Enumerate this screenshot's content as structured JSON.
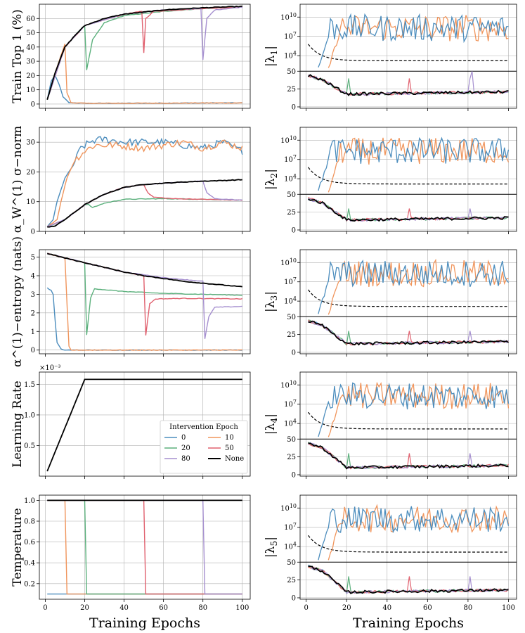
{
  "chart_data": {
    "type": "line",
    "xlabel": "Training Epochs",
    "x_ticks": [
      0,
      20,
      40,
      60,
      80,
      100
    ],
    "colors": {
      "0": "#4c8dbd",
      "10": "#f0955c",
      "20": "#5bb07c",
      "50": "#e0606e",
      "80": "#a58fcf",
      "None": "#000000"
    },
    "legend": {
      "title": "Intervention Epoch",
      "entries": [
        "0",
        "10",
        "20",
        "50",
        "80",
        "None"
      ]
    },
    "left_panels": [
      {
        "id": "train",
        "ylabel": "Train Top 1 (%)",
        "ylim": [
          -3,
          70
        ],
        "yticks": [
          "0",
          "10",
          "20",
          "30",
          "40",
          "50",
          "60"
        ],
        "ytick_values": [
          0,
          10,
          20,
          30,
          40,
          50,
          60
        ],
        "series_knots": {
          "None": [
            [
              1,
              3
            ],
            [
              5,
              22
            ],
            [
              10,
              40
            ],
            [
              15,
              48
            ],
            [
              20,
              55
            ],
            [
              30,
              60
            ],
            [
              40,
              63
            ],
            [
              60,
              66
            ],
            [
              80,
              67.5
            ],
            [
              100,
              68.5
            ]
          ],
          "10": [
            [
              1,
              3
            ],
            [
              5,
              22
            ],
            [
              10,
              42
            ],
            [
              11,
              8
            ],
            [
              13,
              1
            ],
            [
              20,
              0.5
            ],
            [
              100,
              0.8
            ]
          ],
          "20": [
            [
              1,
              3
            ],
            [
              5,
              22
            ],
            [
              10,
              40
            ],
            [
              19,
              54
            ],
            [
              20,
              55
            ],
            [
              21,
              24
            ],
            [
              24,
              45
            ],
            [
              30,
              57
            ],
            [
              40,
              62
            ],
            [
              60,
              65
            ],
            [
              80,
              67
            ],
            [
              100,
              68
            ]
          ],
          "50": [
            [
              1,
              3
            ],
            [
              10,
              40
            ],
            [
              20,
              55
            ],
            [
              40,
              63
            ],
            [
              49,
              65
            ],
            [
              50,
              36
            ],
            [
              51,
              60
            ],
            [
              55,
              65
            ],
            [
              80,
              67
            ],
            [
              100,
              68
            ]
          ],
          "80": [
            [
              1,
              3
            ],
            [
              10,
              40
            ],
            [
              20,
              55
            ],
            [
              40,
              63
            ],
            [
              60,
              66
            ],
            [
              79,
              67
            ],
            [
              80,
              31
            ],
            [
              82,
              60
            ],
            [
              86,
              66
            ],
            [
              100,
              68
            ]
          ],
          "0": [
            [
              1,
              3
            ],
            [
              3,
              16
            ],
            [
              5,
              20
            ],
            [
              7,
              14
            ],
            [
              9,
              5
            ],
            [
              12,
              1
            ],
            [
              20,
              0.5
            ],
            [
              100,
              0.8
            ]
          ]
        }
      },
      {
        "id": "sigma",
        "ylabel": "α_W^(1) σ−norm",
        "ylim": [
          0,
          35
        ],
        "yticks": [
          "0",
          "10",
          "20",
          "30"
        ],
        "ytick_values": [
          0,
          10,
          20,
          30
        ],
        "series_knots": {
          "None": [
            [
              1,
              1.5
            ],
            [
              5,
              1.8
            ],
            [
              10,
              4
            ],
            [
              20,
              9
            ],
            [
              30,
              12.5
            ],
            [
              40,
              14.8
            ],
            [
              50,
              15.8
            ],
            [
              60,
              16.2
            ],
            [
              70,
              16.6
            ],
            [
              80,
              16.9
            ],
            [
              90,
              17.1
            ],
            [
              100,
              17.4
            ]
          ],
          "0": [
            [
              1,
              1.5
            ],
            [
              4,
              4
            ],
            [
              6,
              10
            ],
            [
              8,
              14
            ],
            [
              10,
              18
            ],
            [
              14,
              22
            ],
            [
              18,
              28
            ],
            [
              24,
              30.5
            ],
            [
              30,
              31
            ],
            [
              40,
              30
            ],
            [
              60,
              30
            ],
            [
              80,
              28
            ],
            [
              90,
              30
            ],
            [
              100,
              27
            ]
          ],
          "10": [
            [
              1,
              1.5
            ],
            [
              6,
              4
            ],
            [
              8,
              10
            ],
            [
              11,
              18
            ],
            [
              15,
              24
            ],
            [
              20,
              27
            ],
            [
              25,
              29
            ],
            [
              35,
              29
            ],
            [
              50,
              28
            ],
            [
              60,
              29
            ],
            [
              70,
              30
            ],
            [
              80,
              28
            ],
            [
              90,
              30
            ],
            [
              100,
              28
            ]
          ],
          "20": [
            [
              1,
              1.5
            ],
            [
              10,
              4
            ],
            [
              20,
              9
            ],
            [
              22,
              9
            ],
            [
              24,
              8
            ],
            [
              30,
              9.5
            ],
            [
              40,
              10.8
            ],
            [
              60,
              11
            ],
            [
              80,
              10.8
            ],
            [
              100,
              10.5
            ]
          ],
          "50": [
            [
              1,
              1.5
            ],
            [
              10,
              4
            ],
            [
              20,
              9
            ],
            [
              30,
              12.5
            ],
            [
              40,
              14.8
            ],
            [
              50,
              15.8
            ],
            [
              52,
              13
            ],
            [
              55,
              11.5
            ],
            [
              65,
              11
            ],
            [
              80,
              10.8
            ],
            [
              100,
              10.5
            ]
          ],
          "80": [
            [
              1,
              1.5
            ],
            [
              10,
              4
            ],
            [
              20,
              9
            ],
            [
              30,
              12.5
            ],
            [
              40,
              14.8
            ],
            [
              50,
              15.8
            ],
            [
              60,
              16.2
            ],
            [
              70,
              16.6
            ],
            [
              80,
              16.9
            ],
            [
              82,
              13
            ],
            [
              86,
              11
            ],
            [
              100,
              10.5
            ]
          ]
        }
      },
      {
        "id": "entropy",
        "ylabel": "α^(1)−entropy (nats)",
        "ylim": [
          -0.2,
          5.4
        ],
        "yticks": [
          "0",
          "1",
          "2",
          "3",
          "4",
          "5"
        ],
        "ytick_values": [
          0,
          1,
          2,
          3,
          4,
          5
        ],
        "series_knots": {
          "None": [
            [
              1,
              5.2
            ],
            [
              10,
              4.95
            ],
            [
              20,
              4.7
            ],
            [
              30,
              4.45
            ],
            [
              40,
              4.2
            ],
            [
              50,
              4.0
            ],
            [
              60,
              3.85
            ],
            [
              70,
              3.7
            ],
            [
              80,
              3.6
            ],
            [
              90,
              3.5
            ],
            [
              100,
              3.4
            ]
          ],
          "0": [
            [
              1,
              3.35
            ],
            [
              3,
              3.2
            ],
            [
              4,
              3.0
            ],
            [
              5,
              1.6
            ],
            [
              6,
              0.4
            ],
            [
              8,
              0.05
            ],
            [
              10,
              0
            ],
            [
              100,
              0
            ]
          ],
          "10": [
            [
              1,
              5.2
            ],
            [
              9,
              4.96
            ],
            [
              10,
              4.95
            ],
            [
              11,
              2.5
            ],
            [
              12,
              0.2
            ],
            [
              13,
              0
            ],
            [
              100,
              0
            ]
          ],
          "20": [
            [
              1,
              5.2
            ],
            [
              20,
              4.7
            ],
            [
              21,
              0.8
            ],
            [
              23,
              2.8
            ],
            [
              25,
              3.3
            ],
            [
              40,
              3.15
            ],
            [
              60,
              3.05
            ],
            [
              80,
              3.0
            ],
            [
              100,
              2.95
            ]
          ],
          "50": [
            [
              1,
              5.2
            ],
            [
              20,
              4.7
            ],
            [
              40,
              4.2
            ],
            [
              50,
              4.0
            ],
            [
              51,
              0.8
            ],
            [
              53,
              2.5
            ],
            [
              56,
              2.75
            ],
            [
              70,
              2.78
            ],
            [
              100,
              2.75
            ]
          ],
          "80": [
            [
              1,
              5.2
            ],
            [
              20,
              4.7
            ],
            [
              40,
              4.2
            ],
            [
              60,
              3.9
            ],
            [
              70,
              3.8
            ],
            [
              80,
              3.7
            ],
            [
              81,
              0.6
            ],
            [
              83,
              1.8
            ],
            [
              86,
              2.3
            ],
            [
              100,
              2.35
            ]
          ]
        }
      },
      {
        "id": "lr",
        "ylabel": "Learning Rate",
        "ylim": [
          0.0,
          1.7
        ],
        "yticks": [
          "0.5",
          "1.0",
          "1.5"
        ],
        "ytick_values": [
          0.5,
          1.0,
          1.5
        ],
        "yoffset_label": "×10⁻³",
        "series_knots": {
          "None": [
            [
              1,
              0.08
            ],
            [
              20,
              1.58
            ],
            [
              100,
              1.58
            ]
          ]
        }
      },
      {
        "id": "temp",
        "ylabel": "Temperature",
        "ylim": [
          0.05,
          1.05
        ],
        "yticks": [
          "0.2",
          "0.4",
          "0.6",
          "0.8",
          "1.0"
        ],
        "ytick_values": [
          0.2,
          0.4,
          0.6,
          0.8,
          1.0
        ],
        "series_knots": {
          "0": [
            [
              1,
              0.1
            ],
            [
              100,
              0.1
            ]
          ],
          "10": [
            [
              1,
              1.0
            ],
            [
              10,
              1.0
            ],
            [
              11,
              0.1
            ],
            [
              100,
              0.1
            ]
          ],
          "20": [
            [
              1,
              1.0
            ],
            [
              20,
              1.0
            ],
            [
              21,
              0.1
            ],
            [
              100,
              0.1
            ]
          ],
          "50": [
            [
              1,
              1.0
            ],
            [
              50,
              1.0
            ],
            [
              51,
              0.1
            ],
            [
              100,
              0.1
            ]
          ],
          "80": [
            [
              1,
              1.0
            ],
            [
              80,
              1.0
            ],
            [
              81,
              0.1
            ],
            [
              100,
              0.1
            ]
          ],
          "None": [
            [
              1,
              1.0
            ],
            [
              100,
              1.0
            ]
          ]
        }
      }
    ],
    "right_panels": [
      {
        "id": "lambda1",
        "ylabel": "|λ1|",
        "symbol": "λ",
        "subscript": "1",
        "upper_ticks": [
          "10^4",
          "10^7",
          "10^10"
        ],
        "lower_ticks": [
          "0",
          "25",
          "50"
        ],
        "lower_range": [
          0,
          50
        ],
        "lower_final": 20,
        "lower_early_level": 20
      },
      {
        "id": "lambda2",
        "ylabel": "|λ2|",
        "symbol": "λ",
        "subscript": "2",
        "upper_ticks": [
          "10^4",
          "10^7",
          "10^10"
        ],
        "lower_ticks": [
          "0",
          "25",
          "50"
        ],
        "lower_extra_ticks": [
          "5",
          "10",
          "15",
          "20",
          "25",
          "30",
          "35",
          "40",
          "45"
        ],
        "lower_range": [
          0,
          50
        ],
        "lower_final": 16,
        "lower_early_level": 15
      },
      {
        "id": "lambda3",
        "ylabel": "|λ3|",
        "symbol": "λ",
        "subscript": "3",
        "upper_ticks": [
          "10^4",
          "10^7",
          "10^10"
        ],
        "lower_ticks": [
          "0",
          "25",
          "50"
        ],
        "lower_extra_ticks": [
          "5",
          "10",
          "15",
          "20",
          "25",
          "30",
          "35",
          "40",
          "45"
        ],
        "lower_range": [
          0,
          50
        ],
        "lower_final": 14,
        "lower_early_level": 12
      },
      {
        "id": "lambda4",
        "ylabel": "|λ4|",
        "symbol": "λ",
        "subscript": "4",
        "upper_ticks": [
          "10^4",
          "10^7",
          "10^10"
        ],
        "lower_ticks": [
          "0",
          "25",
          "50"
        ],
        "lower_extra_ticks": [
          "5",
          "10",
          "15",
          "20",
          "25",
          "30",
          "35",
          "40",
          "45"
        ],
        "lower_range": [
          0,
          50
        ],
        "lower_final": 12,
        "lower_early_level": 10
      },
      {
        "id": "lambda5",
        "ylabel": "|λ5|",
        "symbol": "λ",
        "subscript": "5",
        "upper_ticks": [
          "10^4",
          "10^7",
          "10^10"
        ],
        "lower_ticks": [
          "0",
          "25",
          "50"
        ],
        "lower_extra_ticks": [
          "5",
          "10",
          "15",
          "20",
          "25",
          "30",
          "35",
          "40",
          "45"
        ],
        "lower_range": [
          0,
          50
        ],
        "lower_final": 10,
        "lower_early_level": 8
      }
    ]
  }
}
